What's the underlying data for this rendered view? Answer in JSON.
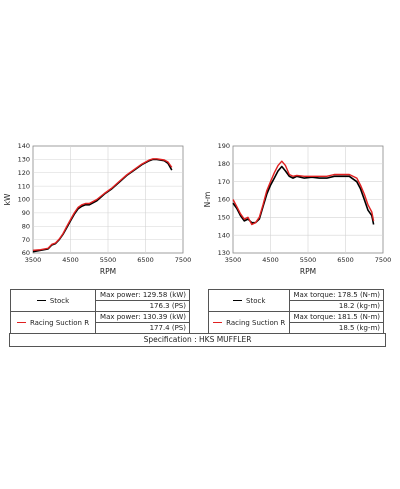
{
  "chart_data": [
    {
      "type": "line",
      "xlabel": "RPM",
      "ylabel": "kW",
      "xlim": [
        3500,
        7500
      ],
      "ylim": [
        60,
        140
      ],
      "x_ticks": [
        3500,
        4500,
        5500,
        6500,
        7500
      ],
      "y_ticks": [
        60,
        70,
        80,
        90,
        100,
        110,
        120,
        130,
        140
      ],
      "grid": true,
      "series": [
        {
          "name": "Stock",
          "color": "#000000",
          "x": [
            3500,
            3700,
            3900,
            4000,
            4100,
            4200,
            4300,
            4400,
            4500,
            4600,
            4700,
            4800,
            4900,
            5000,
            5200,
            5400,
            5600,
            5800,
            6000,
            6200,
            6400,
            6600,
            6700,
            6800,
            7000,
            7100,
            7200
          ],
          "y": [
            61,
            62,
            63,
            66,
            67,
            70,
            74,
            79,
            84,
            89,
            93,
            95,
            96,
            96,
            99,
            104,
            108,
            113,
            118,
            122,
            126,
            129,
            130,
            130,
            129,
            127,
            122
          ]
        },
        {
          "name": "Racing Suction R",
          "color": "#e02020",
          "x": [
            3500,
            3700,
            3900,
            4000,
            4100,
            4200,
            4300,
            4400,
            4500,
            4600,
            4700,
            4800,
            4900,
            5000,
            5200,
            5400,
            5600,
            5800,
            6000,
            6200,
            6400,
            6600,
            6700,
            6800,
            7000,
            7100,
            7200
          ],
          "y": [
            62,
            62.5,
            63.5,
            66.5,
            67.5,
            70.5,
            74.5,
            80,
            85,
            90,
            94,
            96,
            97,
            97,
            100,
            104.5,
            108.5,
            113.5,
            118.5,
            122.5,
            126.5,
            129.5,
            130.4,
            130.4,
            129.5,
            128,
            124
          ]
        }
      ]
    },
    {
      "type": "line",
      "xlabel": "RPM",
      "ylabel": "N-m",
      "xlim": [
        3500,
        7500
      ],
      "ylim": [
        130,
        190
      ],
      "x_ticks": [
        3500,
        4500,
        5500,
        6500,
        7500
      ],
      "y_ticks": [
        130,
        140,
        150,
        160,
        170,
        180,
        190
      ],
      "grid": true,
      "series": [
        {
          "name": "Stock",
          "color": "#000000",
          "x": [
            3500,
            3600,
            3700,
            3800,
            3900,
            4000,
            4100,
            4200,
            4300,
            4400,
            4500,
            4600,
            4700,
            4800,
            4900,
            5000,
            5100,
            5200,
            5400,
            5600,
            5800,
            6000,
            6200,
            6400,
            6600,
            6800,
            6900,
            7000,
            7100,
            7200,
            7250
          ],
          "y": [
            158,
            155,
            151,
            148,
            149,
            147,
            147,
            149,
            156,
            163,
            168,
            172,
            176,
            178.5,
            176,
            173,
            172,
            173,
            172,
            172.5,
            172,
            172,
            173,
            173,
            173,
            170,
            166,
            160,
            154,
            151,
            146
          ]
        },
        {
          "name": "Racing Suction R",
          "color": "#e02020",
          "x": [
            3500,
            3600,
            3700,
            3800,
            3900,
            4000,
            4100,
            4200,
            4300,
            4400,
            4500,
            4600,
            4700,
            4800,
            4900,
            5000,
            5100,
            5200,
            5400,
            5600,
            5800,
            6000,
            6200,
            6400,
            6600,
            6800,
            6900,
            7000,
            7100,
            7200,
            7250
          ],
          "y": [
            160,
            156,
            152,
            149,
            150,
            146,
            147,
            150,
            157,
            165,
            170,
            175,
            179,
            181.5,
            179,
            174,
            173,
            173.5,
            173,
            173,
            173,
            173,
            174,
            174,
            174,
            172,
            168,
            163,
            157,
            153,
            148
          ]
        }
      ]
    }
  ],
  "power_table": {
    "rows": [
      {
        "label": "Stock",
        "color": "#000000",
        "line1": "Max power: 129.58 (kW)",
        "line2": "176.3 (PS)"
      },
      {
        "label": "Racing Suction R",
        "color": "#e02020",
        "line1": "Max power: 130.39 (kW)",
        "line2": "177.4 (PS)"
      }
    ]
  },
  "torque_table": {
    "rows": [
      {
        "label": "Stock",
        "color": "#000000",
        "line1": "Max torque: 178.5 (N-m)",
        "line2": "18.2 (kg-m)"
      },
      {
        "label": "Racing Suction R",
        "color": "#e02020",
        "line1": "Max torque: 181.5 (N-m)",
        "line2": "18.5 (kg-m)"
      }
    ]
  },
  "specification": "Specification : HKS MUFFLER"
}
